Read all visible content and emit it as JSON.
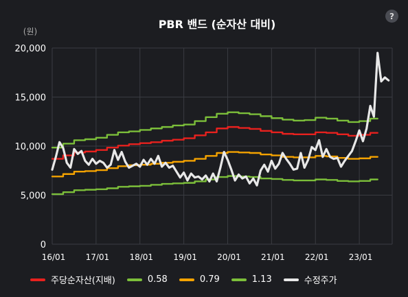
{
  "help_label": "?",
  "chart_data": {
    "type": "line",
    "title": "PBR 밴드 (순자산 대비)",
    "y_unit": "(원)",
    "ylim": [
      0,
      20000
    ],
    "yticks": [
      0,
      5000,
      10000,
      15000,
      20000
    ],
    "ytick_labels": [
      "0",
      "5,000",
      "10,000",
      "15,000",
      "20,000"
    ],
    "xlim": [
      "2016-01",
      "2023-10"
    ],
    "xticks": [
      "2016-01",
      "2017-01",
      "2018-01",
      "2019-01",
      "2020-01",
      "2021-01",
      "2022-01",
      "2023-01"
    ],
    "xtick_labels": [
      "16/01",
      "17/01",
      "18/01",
      "19/01",
      "20/01",
      "21/01",
      "22/01",
      "23/01"
    ],
    "grid": true,
    "legend_position": "bottom",
    "series": [
      {
        "name": "0.58",
        "color": "#7cbf3a",
        "style": "step",
        "points": [
          [
            "2016-01",
            5100
          ],
          [
            "2016-04",
            5300
          ],
          [
            "2016-07",
            5500
          ],
          [
            "2016-10",
            5550
          ],
          [
            "2017-01",
            5600
          ],
          [
            "2017-04",
            5700
          ],
          [
            "2017-07",
            5850
          ],
          [
            "2017-10",
            5900
          ],
          [
            "2018-01",
            5950
          ],
          [
            "2018-04",
            6050
          ],
          [
            "2018-07",
            6150
          ],
          [
            "2018-10",
            6200
          ],
          [
            "2019-01",
            6250
          ],
          [
            "2019-04",
            6400
          ],
          [
            "2019-07",
            6600
          ],
          [
            "2019-10",
            6850
          ],
          [
            "2020-01",
            6950
          ],
          [
            "2020-04",
            6900
          ],
          [
            "2020-07",
            6850
          ],
          [
            "2020-10",
            6700
          ],
          [
            "2021-01",
            6650
          ],
          [
            "2021-04",
            6550
          ],
          [
            "2021-07",
            6500
          ],
          [
            "2021-10",
            6500
          ],
          [
            "2022-01",
            6600
          ],
          [
            "2022-04",
            6550
          ],
          [
            "2022-07",
            6450
          ],
          [
            "2022-10",
            6400
          ],
          [
            "2023-01",
            6450
          ],
          [
            "2023-04",
            6600
          ],
          [
            "2023-06",
            6600
          ]
        ]
      },
      {
        "name": "0.79",
        "color": "#f5a300",
        "style": "step",
        "points": [
          [
            "2016-01",
            6900
          ],
          [
            "2016-04",
            7150
          ],
          [
            "2016-07",
            7400
          ],
          [
            "2016-10",
            7450
          ],
          [
            "2017-01",
            7550
          ],
          [
            "2017-04",
            7750
          ],
          [
            "2017-07",
            7950
          ],
          [
            "2017-10",
            8050
          ],
          [
            "2018-01",
            8100
          ],
          [
            "2018-04",
            8200
          ],
          [
            "2018-07",
            8300
          ],
          [
            "2018-10",
            8400
          ],
          [
            "2019-01",
            8500
          ],
          [
            "2019-04",
            8700
          ],
          [
            "2019-07",
            9000
          ],
          [
            "2019-10",
            9300
          ],
          [
            "2020-01",
            9400
          ],
          [
            "2020-04",
            9350
          ],
          [
            "2020-07",
            9300
          ],
          [
            "2020-10",
            9150
          ],
          [
            "2021-01",
            9050
          ],
          [
            "2021-04",
            8900
          ],
          [
            "2021-07",
            8850
          ],
          [
            "2021-10",
            8850
          ],
          [
            "2022-01",
            9000
          ],
          [
            "2022-04",
            8950
          ],
          [
            "2022-07",
            8800
          ],
          [
            "2022-10",
            8700
          ],
          [
            "2023-01",
            8750
          ],
          [
            "2023-04",
            8900
          ],
          [
            "2023-06",
            8900
          ]
        ]
      },
      {
        "name": "주당순자산(지배)",
        "color": "#e8211e",
        "style": "step",
        "points": [
          [
            "2016-01",
            8700
          ],
          [
            "2016-04",
            9050
          ],
          [
            "2016-07",
            9350
          ],
          [
            "2016-10",
            9450
          ],
          [
            "2017-01",
            9600
          ],
          [
            "2017-04",
            9850
          ],
          [
            "2017-07",
            10050
          ],
          [
            "2017-10",
            10200
          ],
          [
            "2018-01",
            10300
          ],
          [
            "2018-04",
            10400
          ],
          [
            "2018-07",
            10550
          ],
          [
            "2018-10",
            10650
          ],
          [
            "2019-01",
            10800
          ],
          [
            "2019-04",
            11100
          ],
          [
            "2019-07",
            11400
          ],
          [
            "2019-10",
            11800
          ],
          [
            "2020-01",
            11950
          ],
          [
            "2020-04",
            11850
          ],
          [
            "2020-07",
            11750
          ],
          [
            "2020-10",
            11550
          ],
          [
            "2021-01",
            11400
          ],
          [
            "2021-04",
            11250
          ],
          [
            "2021-07",
            11200
          ],
          [
            "2021-10",
            11200
          ],
          [
            "2022-01",
            11400
          ],
          [
            "2022-04",
            11350
          ],
          [
            "2022-07",
            11200
          ],
          [
            "2022-10",
            11050
          ],
          [
            "2023-01",
            11150
          ],
          [
            "2023-04",
            11350
          ],
          [
            "2023-06",
            11350
          ]
        ]
      },
      {
        "name": "1.13",
        "color": "#7cbf3a",
        "style": "step",
        "points": [
          [
            "2016-01",
            9850
          ],
          [
            "2016-04",
            10250
          ],
          [
            "2016-07",
            10600
          ],
          [
            "2016-10",
            10700
          ],
          [
            "2017-01",
            10850
          ],
          [
            "2017-04",
            11150
          ],
          [
            "2017-07",
            11400
          ],
          [
            "2017-10",
            11500
          ],
          [
            "2018-01",
            11650
          ],
          [
            "2018-04",
            11800
          ],
          [
            "2018-07",
            11950
          ],
          [
            "2018-10",
            12100
          ],
          [
            "2019-01",
            12200
          ],
          [
            "2019-04",
            12550
          ],
          [
            "2019-07",
            12950
          ],
          [
            "2019-10",
            13300
          ],
          [
            "2020-01",
            13450
          ],
          [
            "2020-04",
            13350
          ],
          [
            "2020-07",
            13250
          ],
          [
            "2020-10",
            13050
          ],
          [
            "2021-01",
            12850
          ],
          [
            "2021-04",
            12700
          ],
          [
            "2021-07",
            12600
          ],
          [
            "2021-10",
            12650
          ],
          [
            "2022-01",
            12900
          ],
          [
            "2022-04",
            12800
          ],
          [
            "2022-07",
            12600
          ],
          [
            "2022-10",
            12450
          ],
          [
            "2023-01",
            12550
          ],
          [
            "2023-04",
            12800
          ],
          [
            "2023-06",
            12800
          ]
        ]
      },
      {
        "name": "수정주가",
        "color": "#e8e8e8",
        "style": "line",
        "points": [
          [
            "2016-01",
            7600
          ],
          [
            "2016-02",
            8900
          ],
          [
            "2016-03",
            10400
          ],
          [
            "2016-04",
            9800
          ],
          [
            "2016-05",
            8300
          ],
          [
            "2016-06",
            7800
          ],
          [
            "2016-07",
            9700
          ],
          [
            "2016-08",
            9200
          ],
          [
            "2016-09",
            9500
          ],
          [
            "2016-10",
            8500
          ],
          [
            "2016-11",
            8100
          ],
          [
            "2016-12",
            8700
          ],
          [
            "2017-01",
            8200
          ],
          [
            "2017-02",
            8500
          ],
          [
            "2017-03",
            8300
          ],
          [
            "2017-04",
            7800
          ],
          [
            "2017-05",
            8100
          ],
          [
            "2017-06",
            9600
          ],
          [
            "2017-07",
            8600
          ],
          [
            "2017-08",
            9400
          ],
          [
            "2017-09",
            8400
          ],
          [
            "2017-10",
            7800
          ],
          [
            "2017-11",
            8000
          ],
          [
            "2017-12",
            8200
          ],
          [
            "2018-01",
            7900
          ],
          [
            "2018-02",
            8600
          ],
          [
            "2018-03",
            8100
          ],
          [
            "2018-04",
            8700
          ],
          [
            "2018-05",
            8200
          ],
          [
            "2018-06",
            9000
          ],
          [
            "2018-07",
            7900
          ],
          [
            "2018-08",
            8300
          ],
          [
            "2018-09",
            7800
          ],
          [
            "2018-10",
            8000
          ],
          [
            "2018-11",
            7400
          ],
          [
            "2018-12",
            6800
          ],
          [
            "2019-01",
            7300
          ],
          [
            "2019-02",
            6500
          ],
          [
            "2019-03",
            7200
          ],
          [
            "2019-04",
            6800
          ],
          [
            "2019-05",
            6900
          ],
          [
            "2019-06",
            6600
          ],
          [
            "2019-07",
            7000
          ],
          [
            "2019-08",
            6400
          ],
          [
            "2019-09",
            7200
          ],
          [
            "2019-10",
            6400
          ],
          [
            "2019-11",
            7800
          ],
          [
            "2019-12",
            9400
          ],
          [
            "2020-01",
            8600
          ],
          [
            "2020-02",
            7600
          ],
          [
            "2020-03",
            6500
          ],
          [
            "2020-04",
            7100
          ],
          [
            "2020-05",
            6700
          ],
          [
            "2020-06",
            6900
          ],
          [
            "2020-07",
            6200
          ],
          [
            "2020-08",
            6700
          ],
          [
            "2020-09",
            6000
          ],
          [
            "2020-10",
            7500
          ],
          [
            "2020-11",
            8100
          ],
          [
            "2020-12",
            7400
          ],
          [
            "2021-01",
            8500
          ],
          [
            "2021-02",
            7700
          ],
          [
            "2021-03",
            8200
          ],
          [
            "2021-04",
            9300
          ],
          [
            "2021-05",
            8700
          ],
          [
            "2021-06",
            8200
          ],
          [
            "2021-07",
            7600
          ],
          [
            "2021-08",
            7700
          ],
          [
            "2021-09",
            9300
          ],
          [
            "2021-10",
            7800
          ],
          [
            "2021-11",
            8600
          ],
          [
            "2021-12",
            9900
          ],
          [
            "2022-01",
            9600
          ],
          [
            "2022-02",
            10600
          ],
          [
            "2022-03",
            8900
          ],
          [
            "2022-04",
            9700
          ],
          [
            "2022-05",
            8900
          ],
          [
            "2022-06",
            8700
          ],
          [
            "2022-07",
            8800
          ],
          [
            "2022-08",
            7900
          ],
          [
            "2022-09",
            8500
          ],
          [
            "2022-10",
            9000
          ],
          [
            "2022-11",
            9500
          ],
          [
            "2022-12",
            10500
          ],
          [
            "2023-01",
            11600
          ],
          [
            "2023-02",
            10500
          ],
          [
            "2023-03",
            11800
          ],
          [
            "2023-04",
            14100
          ],
          [
            "2023-05",
            13000
          ],
          [
            "2023-06",
            19500
          ],
          [
            "2023-07",
            16600
          ],
          [
            "2023-08",
            17000
          ],
          [
            "2023-09",
            16700
          ]
        ]
      }
    ]
  }
}
